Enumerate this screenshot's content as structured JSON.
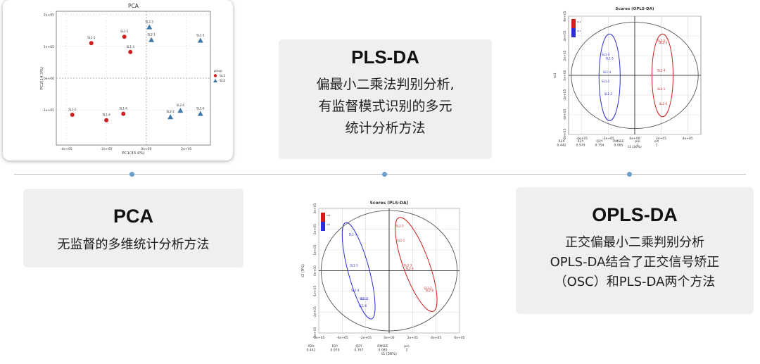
{
  "colors": {
    "red": "#d11f1f",
    "teal": "#3f78a6",
    "blue": "#2d2fd0",
    "card_bg": "#efefef",
    "timeline": "#bfc4c9",
    "dot": "#6b9ec9"
  },
  "cards": {
    "pca": {
      "title": "PCA",
      "desc": "无监督的多维统计分析方法"
    },
    "plsda": {
      "title": "PLS-DA",
      "desc_lines": [
        "偏最小二乘法判别分析,",
        "有监督模式识别的多元",
        "统计分析方法"
      ]
    },
    "oplsda": {
      "title": "OPLS-DA",
      "desc_lines": [
        "正交偏最小二乘判别分析",
        "OPLS-DA结合了正交信号矫正",
        "（OSC）和PLS-DA两个方法"
      ]
    }
  },
  "chart_data": [
    {
      "type": "scatter",
      "title": "PCA",
      "xlabel": "PC1(33.4%)",
      "ylabel": "PC2(14.3%)",
      "xlim": [
        -450000,
        320000
      ],
      "ylim": [
        -210000,
        210000
      ],
      "x_ticks": [
        "-4e+05",
        "-2e+05",
        "0e+00",
        "2e+05"
      ],
      "y_ticks": [
        "2e+05",
        "1e+05",
        "0e+00",
        "-1e+05"
      ],
      "legend": {
        "title": "group",
        "entries": [
          "SL1",
          "SL2"
        ],
        "placement": "right"
      },
      "series": [
        {
          "name": "SL1",
          "color": "#d11f1f",
          "marker": "circle",
          "points": [
            {
              "label": "SL1-1",
              "x": -275000,
              "y": 110000
            },
            {
              "label": "SL1-5",
              "x": -110000,
              "y": 130000
            },
            {
              "label": "SL1-3",
              "x": -80000,
              "y": 82000
            },
            {
              "label": "SL1-2",
              "x": -370000,
              "y": -115000
            },
            {
              "label": "SL1-4",
              "x": -200000,
              "y": -132000
            },
            {
              "label": "SL1-6",
              "x": -115000,
              "y": -112000
            }
          ]
        },
        {
          "name": "SL2",
          "color": "#3f78a6",
          "marker": "triangle",
          "points": [
            {
              "label": "SL2-5",
              "x": 15000,
              "y": 160000
            },
            {
              "label": "SL2-1",
              "x": 25000,
              "y": 120000
            },
            {
              "label": "SL2-3",
              "x": 270000,
              "y": 118000
            },
            {
              "label": "SL2-4",
              "x": 170000,
              "y": -102000
            },
            {
              "label": "SL2-2",
              "x": 120000,
              "y": -122000
            },
            {
              "label": "SL2-6",
              "x": 270000,
              "y": -112000
            }
          ]
        }
      ]
    },
    {
      "type": "scatter",
      "title": "Scores (PLS-DA)",
      "ylabel": "t2 (9%)",
      "xlabel": "t1 (36%)",
      "xlim": [
        -600000,
        600000
      ],
      "ylim": [
        -300000,
        300000
      ],
      "x_ticks": [
        "-6e+05",
        "-4e+05",
        "-2e+05",
        "0e+00",
        "2e+05",
        "4e+05",
        "6e+05"
      ],
      "y_ticks": [
        "3e+05",
        "2e+05",
        "1e+05",
        "0e+00",
        "-1e+05",
        "-2e+05",
        "-3e+05"
      ],
      "legend": {
        "entries": [
          "SL2",
          "SL1"
        ],
        "placement": "top-left"
      },
      "series": [
        {
          "name": "SL2",
          "color": "#d11f1f",
          "points": [
            {
              "label": "SL2-5",
              "x": 90000,
              "y": 210000
            },
            {
              "label": "SL2-1",
              "x": 100000,
              "y": 140000
            },
            {
              "label": "SL2-3",
              "x": 160000,
              "y": 20000
            },
            {
              "label": "SL2-4",
              "x": 175000,
              "y": 5000
            },
            {
              "label": "SL2-2",
              "x": 330000,
              "y": -90000
            },
            {
              "label": "SL2-6",
              "x": 345000,
              "y": -100000
            }
          ]
        },
        {
          "name": "SL1",
          "color": "#2d2fd0",
          "points": [
            {
              "label": "SL1-3",
              "x": -310000,
              "y": 170000
            },
            {
              "label": "SL1-5",
              "x": -300000,
              "y": 20000
            },
            {
              "label": "SL1-4",
              "x": -290000,
              "y": -100000
            },
            {
              "label": "SL1-2",
              "x": -220000,
              "y": -140000
            },
            {
              "label": "SL1-1",
              "x": -210000,
              "y": -140000
            },
            {
              "label": "SL1-6",
              "x": -225000,
              "y": -175000
            }
          ]
        }
      ],
      "ellipses": [
        {
          "series": "SL2",
          "color": "#d11f1f",
          "cx": 230000,
          "cy": 30000,
          "rx": 110000,
          "ry": 240000,
          "rotate": -20
        },
        {
          "series": "SL1",
          "color": "#2d2fd0",
          "cx": -260000,
          "cy": 0,
          "rx": 90000,
          "ry": 240000,
          "rotate": -15
        },
        {
          "series": "all",
          "color": "#555555",
          "cx": 0,
          "cy": 0,
          "rx": 580000,
          "ry": 290000,
          "rotate": 0
        }
      ],
      "stats": {
        "headers": [
          "R2X",
          "R2Y",
          "Q2Y",
          "RMSEE",
          "pre"
        ],
        "values": [
          "0.442",
          "0.979",
          "0.767",
          "0.085",
          "2"
        ]
      }
    },
    {
      "type": "scatter",
      "title": "Scores (OPLS-DA)",
      "ylabel": "to1",
      "xlabel": "t1 (26%)",
      "xlim": [
        -500000,
        500000
      ],
      "ylim": [
        -600000,
        600000
      ],
      "x_ticks": [
        "-4e+05",
        "-2e+05",
        "0e+00",
        "2e+05",
        "4e+05"
      ],
      "y_ticks": [
        "6e+05",
        "4e+05",
        "2e+05",
        "0e+00",
        "-2e+05",
        "-4e+05",
        "-6e+05"
      ],
      "legend": {
        "entries": [
          "SL2",
          "SL1"
        ],
        "placement": "top-left"
      },
      "series": [
        {
          "name": "SL2",
          "color": "#d11f1f",
          "points": [
            {
              "label": "SL2-5",
              "x": 200000,
              "y": 340000
            },
            {
              "label": "SL2-3",
              "x": 215000,
              "y": 320000
            },
            {
              "label": "SL2-4",
              "x": 200000,
              "y": 40000
            },
            {
              "label": "SL2-1",
              "x": 200000,
              "y": -150000
            },
            {
              "label": "SL2-6",
              "x": 215000,
              "y": -300000
            }
          ]
        },
        {
          "name": "SL1",
          "color": "#2d2fd0",
          "points": [
            {
              "label": "SL1-3",
              "x": -220000,
              "y": 200000
            },
            {
              "label": "SL1-5",
              "x": -190000,
              "y": 160000
            },
            {
              "label": "SL1-4",
              "x": -210000,
              "y": 20000
            },
            {
              "label": "SL1-1",
              "x": -220000,
              "y": -70000
            },
            {
              "label": "SL1-2",
              "x": -200000,
              "y": -200000
            }
          ]
        }
      ],
      "ellipses": [
        {
          "series": "SL2",
          "color": "#d11f1f",
          "cx": 210000,
          "cy": 0,
          "rx": 80000,
          "ry": 420000,
          "rotate": 0
        },
        {
          "series": "SL1",
          "color": "#2d2fd0",
          "cx": -190000,
          "cy": -20000,
          "rx": 80000,
          "ry": 440000,
          "rotate": 0
        },
        {
          "series": "all",
          "color": "#555555",
          "cx": 0,
          "cy": 0,
          "rx": 480000,
          "ry": 540000,
          "rotate": 0
        }
      ],
      "stats": {
        "headers": [
          "R2X",
          "R2Y",
          "Q2Y",
          "RMSEE",
          "pre",
          "ort"
        ],
        "values": [
          "0.442",
          "0.979",
          "0.754",
          "0.085",
          "1",
          "1"
        ]
      }
    }
  ]
}
